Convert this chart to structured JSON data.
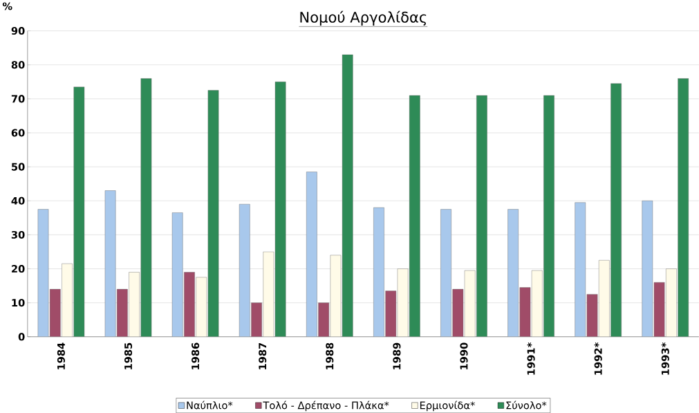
{
  "chart_data": {
    "type": "bar",
    "title": "Νομού Αργολίδας",
    "ylabel": "%",
    "categories": [
      "1984",
      "1985",
      "1986",
      "1987",
      "1988",
      "1989",
      "1990",
      "1991*",
      "1992*",
      "1993*"
    ],
    "series": [
      {
        "name": "Ναύπλιο*",
        "color": "#a8c8ec",
        "values": [
          37.5,
          43,
          36.5,
          39,
          48.5,
          38,
          37.5,
          37.5,
          39.5,
          40
        ]
      },
      {
        "name": "Τολό - Δρέπανο - Πλάκα*",
        "color": "#a04c68",
        "values": [
          14,
          14,
          19,
          10,
          10,
          13.5,
          14,
          14.5,
          12.5,
          16
        ]
      },
      {
        "name": "Ερμιονίδα*",
        "color": "#fffbe8",
        "values": [
          21.5,
          19,
          17.5,
          25,
          24,
          20,
          19.5,
          19.5,
          22.5,
          20
        ]
      },
      {
        "name": "Σύνολο*",
        "color": "#2e8b57",
        "values": [
          73.5,
          76,
          72.5,
          75,
          83,
          71,
          71,
          71,
          74.5,
          76
        ]
      }
    ],
    "ylim": [
      0,
      90
    ],
    "yticks": [
      0,
      10,
      20,
      30,
      40,
      50,
      60,
      70,
      80,
      90
    ],
    "grid": "y",
    "legend": "bottom"
  }
}
